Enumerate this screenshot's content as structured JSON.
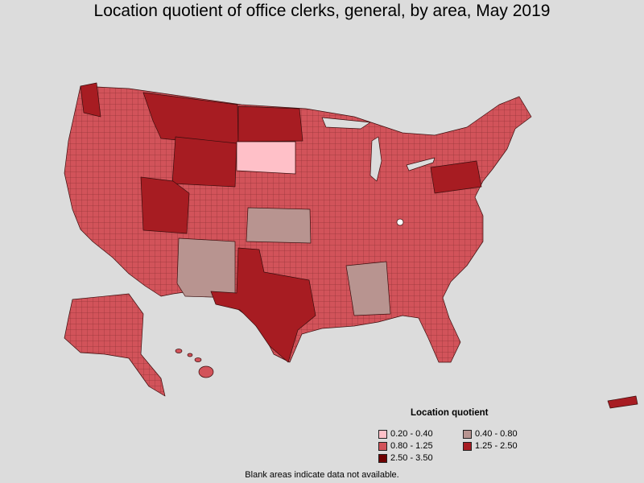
{
  "title": "Location quotient of office clerks, general, by area, May 2019",
  "legend": {
    "title": "Location quotient",
    "items": [
      {
        "label": "0.20 - 0.40",
        "color": "#ffc0c8"
      },
      {
        "label": "0.40 - 0.80",
        "color": "#b89490"
      },
      {
        "label": "0.80 - 1.25",
        "color": "#d2535a"
      },
      {
        "label": "1.25 - 2.50",
        "color": "#a71c22"
      },
      {
        "label": "2.50 - 3.50",
        "color": "#6e0000"
      }
    ]
  },
  "footnote": "Blank areas indicate data not available.",
  "map_regions": {
    "default_class": "0.80 - 1.25",
    "regions": [
      {
        "name": "South Dakota",
        "class": "0.20 - 0.40"
      },
      {
        "name": "Kansas",
        "class": "0.40 - 0.80"
      },
      {
        "name": "New Mexico",
        "class": "0.40 - 0.80"
      },
      {
        "name": "Montana",
        "class": "1.25 - 2.50"
      },
      {
        "name": "North Dakota",
        "class": "1.25 - 2.50"
      },
      {
        "name": "Wyoming",
        "class": "1.25 - 2.50"
      },
      {
        "name": "Utah",
        "class": "1.25 - 2.50"
      },
      {
        "name": "Texas",
        "class": "1.25 - 2.50"
      },
      {
        "name": "Pennsylvania",
        "class": "1.25 - 2.50"
      },
      {
        "name": "Alaska",
        "class": "0.80 - 1.25"
      },
      {
        "name": "Hawaii",
        "class": "0.80 - 1.25"
      }
    ]
  }
}
